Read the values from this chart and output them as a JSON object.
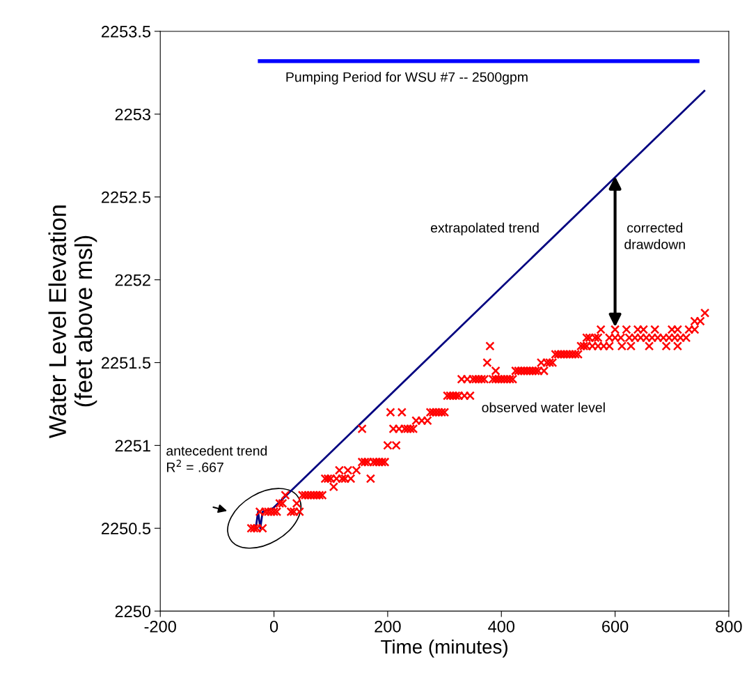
{
  "chart_data": {
    "type": "scatter",
    "xlabel": "Time (minutes)",
    "ylabel": "Water Level Elevation\n(feet above msl)",
    "xlim": [
      -200,
      800
    ],
    "xticks": [
      -200,
      0,
      200,
      400,
      600,
      800
    ],
    "ylim": [
      2250,
      2253.5
    ],
    "yticks": [
      2250,
      2250.5,
      2251,
      2251.5,
      2252,
      2252.5,
      2253,
      2253.5
    ],
    "grid": false,
    "legend": false,
    "series": [
      {
        "type": "line",
        "color": "#000080",
        "x": [
          -32,
          -28,
          -24,
          -20,
          -2
        ],
        "values": [
          2250.5,
          2250.6,
          2250.5,
          2250.6,
          2250.62
        ]
      },
      {
        "type": "line",
        "color": "#000080",
        "x": [
          -2,
          757
        ],
        "values": [
          2250.62,
          2253.14
        ]
      },
      {
        "type": "line",
        "color": "#0000ff",
        "x": [
          -25,
          745
        ],
        "values": [
          2253.32,
          2253.32
        ]
      },
      {
        "color": "#ff0000",
        "marker": "cross",
        "x": [
          -40,
          -35,
          -30,
          -20,
          -25,
          -15,
          -10,
          -5,
          0,
          5,
          30,
          35,
          45,
          10,
          15,
          40,
          20,
          50,
          55,
          60,
          65,
          70,
          75,
          80,
          85,
          90,
          95,
          100,
          110,
          120,
          125,
          135,
          170,
          105,
          115,
          130,
          145,
          155,
          160,
          165,
          175,
          180,
          185,
          190,
          195,
          200,
          215,
          155,
          210,
          220,
          230,
          235,
          240,
          245,
          205,
          225,
          275,
          280,
          285,
          290,
          295,
          300,
          250,
          260,
          270,
          305,
          310,
          315,
          320,
          325,
          335,
          345,
          330,
          340,
          350,
          355,
          360,
          365,
          370,
          385,
          390,
          395,
          400,
          405,
          410,
          415,
          420,
          390,
          425,
          430,
          435,
          440,
          445,
          450,
          455,
          460,
          465,
          475,
          375,
          470,
          480,
          485,
          490,
          495,
          500,
          505,
          510,
          515,
          520,
          525,
          530,
          535,
          380,
          540,
          545,
          550,
          560,
          570,
          580,
          590,
          612,
          628,
          660,
          690,
          710,
          550,
          555,
          565,
          570,
          590,
          600,
          610,
          625,
          635,
          645,
          655,
          665,
          675,
          685,
          695,
          705,
          715,
          725,
          575,
          600,
          620,
          640,
          650,
          670,
          700,
          710,
          730,
          740,
          740,
          750,
          758
        ],
        "values": [
          2250.5,
          2250.5,
          2250.5,
          2250.5,
          2250.6,
          2250.6,
          2250.6,
          2250.6,
          2250.6,
          2250.6,
          2250.6,
          2250.6,
          2250.6,
          2250.65,
          2250.65,
          2250.65,
          2250.7,
          2250.7,
          2250.7,
          2250.7,
          2250.7,
          2250.7,
          2250.7,
          2250.7,
          2250.7,
          2250.8,
          2250.8,
          2250.8,
          2250.8,
          2250.8,
          2250.8,
          2250.8,
          2250.8,
          2250.75,
          2250.85,
          2250.85,
          2250.85,
          2250.9,
          2250.9,
          2250.9,
          2250.9,
          2250.9,
          2250.9,
          2250.9,
          2250.9,
          2251.0,
          2251.0,
          2251.1,
          2251.1,
          2251.1,
          2251.1,
          2251.1,
          2251.1,
          2251.1,
          2251.2,
          2251.2,
          2251.2,
          2251.2,
          2251.2,
          2251.2,
          2251.2,
          2251.2,
          2251.15,
          2251.15,
          2251.15,
          2251.3,
          2251.3,
          2251.3,
          2251.3,
          2251.3,
          2251.3,
          2251.3,
          2251.4,
          2251.4,
          2251.4,
          2251.4,
          2251.4,
          2251.4,
          2251.4,
          2251.4,
          2251.4,
          2251.4,
          2251.4,
          2251.4,
          2251.4,
          2251.4,
          2251.4,
          2251.45,
          2251.45,
          2251.45,
          2251.45,
          2251.45,
          2251.45,
          2251.45,
          2251.45,
          2251.45,
          2251.45,
          2251.45,
          2251.5,
          2251.5,
          2251.5,
          2251.5,
          2251.5,
          2251.55,
          2251.55,
          2251.55,
          2251.55,
          2251.55,
          2251.55,
          2251.55,
          2251.55,
          2251.55,
          2251.6,
          2251.6,
          2251.6,
          2251.6,
          2251.6,
          2251.6,
          2251.6,
          2251.6,
          2251.6,
          2251.6,
          2251.6,
          2251.6,
          2251.6,
          2251.65,
          2251.65,
          2251.65,
          2251.65,
          2251.65,
          2251.65,
          2251.65,
          2251.65,
          2251.65,
          2251.65,
          2251.65,
          2251.65,
          2251.65,
          2251.65,
          2251.65,
          2251.65,
          2251.65,
          2251.65,
          2251.7,
          2251.7,
          2251.7,
          2251.7,
          2251.7,
          2251.7,
          2251.7,
          2251.7,
          2251.7,
          2251.7,
          2251.75,
          2251.75,
          2251.8
        ]
      }
    ],
    "annotations": [
      "Pumping Period for WSU #7 -- 2500gpm",
      "extrapolated trend",
      "corrected\ndrawdown",
      "observed water level",
      "antecedent trend\nR$^{2}$ = .667"
    ]
  }
}
